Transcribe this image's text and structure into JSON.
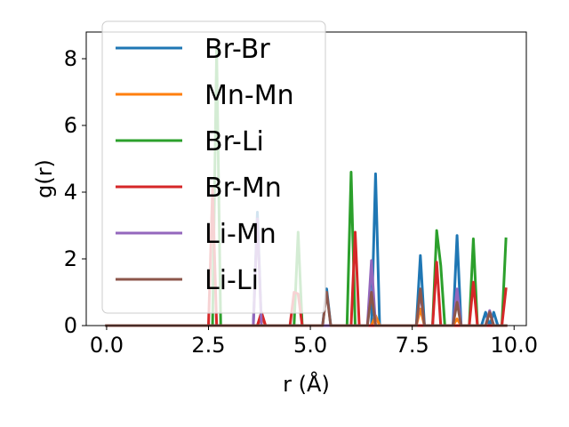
{
  "chart_data": {
    "type": "line",
    "title": "",
    "xlabel": "r (Å)",
    "ylabel": "g(r)",
    "xlim": [
      -0.5,
      10.3
    ],
    "ylim": [
      0,
      8.8
    ],
    "xticks": [
      "0.0",
      "2.5",
      "5.0",
      "7.5",
      "10.0"
    ],
    "xtick_values": [
      0,
      2.5,
      5,
      7.5,
      10
    ],
    "yticks": [
      "0",
      "2",
      "4",
      "6",
      "8"
    ],
    "ytick_values": [
      0,
      2,
      4,
      6,
      8
    ],
    "grid": false,
    "legend_position": "upper-left",
    "series": [
      {
        "name": "Br-Br",
        "color": "#1f77b4",
        "peaks": [
          [
            3.75,
            3.4
          ],
          [
            5.4,
            1.1
          ],
          [
            6.6,
            4.55
          ],
          [
            7.7,
            2.1
          ],
          [
            8.6,
            2.7
          ],
          [
            9.3,
            0.4
          ],
          [
            9.5,
            0.4
          ]
        ]
      },
      {
        "name": "Mn-Mn",
        "color": "#ff7f0e",
        "peaks": [
          [
            3.8,
            0.3
          ],
          [
            6.6,
            0.3
          ],
          [
            7.7,
            0.5
          ],
          [
            8.6,
            0.2
          ]
        ]
      },
      {
        "name": "Br-Li",
        "color": "#2ca02c",
        "peaks": [
          [
            2.7,
            8.3
          ],
          [
            4.7,
            2.8
          ],
          [
            6.0,
            4.6
          ],
          [
            8.1,
            2.85
          ],
          [
            8.2,
            1.8
          ],
          [
            9.0,
            2.6
          ],
          [
            9.8,
            2.6
          ]
        ]
      },
      {
        "name": "Br-Mn",
        "color": "#d62728",
        "peaks": [
          [
            2.6,
            4.1
          ],
          [
            3.8,
            0.4
          ],
          [
            4.6,
            1.0
          ],
          [
            4.75,
            0.95
          ],
          [
            6.1,
            2.8
          ],
          [
            8.1,
            1.9
          ],
          [
            9.0,
            1.3
          ],
          [
            9.8,
            1.1
          ]
        ]
      },
      {
        "name": "Li-Mn",
        "color": "#9467bd",
        "peaks": [
          [
            3.7,
            3.2
          ],
          [
            6.55,
            1.95
          ],
          [
            7.7,
            1.0
          ],
          [
            8.6,
            1.1
          ],
          [
            9.4,
            0.45
          ]
        ]
      },
      {
        "name": "Li-Li",
        "color": "#8c564b",
        "peaks": [
          [
            5.45,
            1.0
          ],
          [
            6.55,
            1.0
          ],
          [
            7.7,
            1.1
          ],
          [
            8.6,
            0.7
          ],
          [
            9.4,
            0.4
          ]
        ]
      }
    ]
  }
}
